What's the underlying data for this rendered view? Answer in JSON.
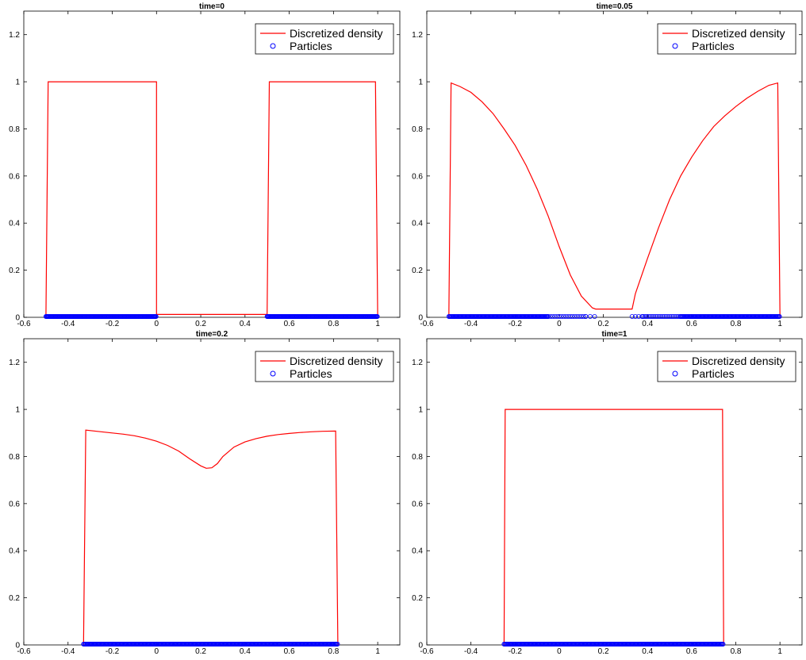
{
  "chart_data": [
    {
      "type": "line",
      "title": "time=0",
      "xlim": [
        -0.6,
        1.1
      ],
      "ylim": [
        0,
        1.3
      ],
      "xticks": [
        "-0.6",
        "-0.4",
        "-0.2",
        "0",
        "0.2",
        "0.4",
        "0.6",
        "0.8",
        "1"
      ],
      "xtick_values": [
        -0.6,
        -0.4,
        -0.2,
        0,
        0.2,
        0.4,
        0.6,
        0.8,
        1
      ],
      "yticks": [
        "0",
        "0.2",
        "0.4",
        "0.6",
        "0.8",
        "1",
        "1.2"
      ],
      "ytick_values": [
        0,
        0.2,
        0.4,
        0.6,
        0.8,
        1,
        1.2
      ],
      "legend": [
        "Discretized density",
        "Particles"
      ],
      "legend_position": "top-right",
      "series": [
        {
          "name": "Discretized density",
          "color": "#ff0000",
          "x": [
            -0.5,
            -0.49,
            0,
            0.0,
            0.5,
            0.51,
            0.99,
            1.0
          ],
          "y": [
            0,
            1,
            1,
            0.012,
            0.012,
            1,
            1,
            0
          ]
        },
        {
          "name": "Particles",
          "color": "#0000ff",
          "marker": "circle",
          "clusters": [
            {
              "from": -0.5,
              "to": 0.0,
              "gap": 0.003,
              "y": 0
            },
            {
              "from": 0.5,
              "to": 1.0,
              "gap": 0.003,
              "y": 0
            }
          ]
        }
      ]
    },
    {
      "type": "line",
      "title": "time=0.05",
      "xlim": [
        -0.6,
        1.1
      ],
      "ylim": [
        0,
        1.3
      ],
      "xticks": [
        "-0.6",
        "-0.4",
        "-0.2",
        "0",
        "0.2",
        "0.4",
        "0.6",
        "0.8",
        "1"
      ],
      "xtick_values": [
        -0.6,
        -0.4,
        -0.2,
        0,
        0.2,
        0.4,
        0.6,
        0.8,
        1
      ],
      "yticks": [
        "0",
        "0.2",
        "0.4",
        "0.6",
        "0.8",
        "1",
        "1.2"
      ],
      "ytick_values": [
        0,
        0.2,
        0.4,
        0.6,
        0.8,
        1,
        1.2
      ],
      "legend": [
        "Discretized density",
        "Particles"
      ],
      "legend_position": "top-right",
      "series": [
        {
          "name": "Discretized density",
          "color": "#ff0000",
          "x": [
            -0.5,
            -0.49,
            -0.45,
            -0.4,
            -0.35,
            -0.3,
            -0.25,
            -0.2,
            -0.15,
            -0.1,
            -0.05,
            0,
            0.05,
            0.1,
            0.15,
            0.165,
            0.33,
            0.345,
            0.4,
            0.45,
            0.5,
            0.55,
            0.6,
            0.65,
            0.7,
            0.75,
            0.8,
            0.85,
            0.9,
            0.95,
            0.99,
            1.0
          ],
          "y": [
            0,
            0.995,
            0.98,
            0.955,
            0.915,
            0.865,
            0.8,
            0.73,
            0.645,
            0.545,
            0.43,
            0.3,
            0.18,
            0.09,
            0.04,
            0.035,
            0.035,
            0.1,
            0.25,
            0.38,
            0.5,
            0.6,
            0.68,
            0.75,
            0.81,
            0.855,
            0.895,
            0.93,
            0.96,
            0.985,
            0.995,
            0
          ]
        },
        {
          "name": "Particles",
          "color": "#0000ff",
          "marker": "circle",
          "clusters": [
            {
              "from": -0.5,
              "to": -0.05,
              "gap": 0.004,
              "y": 0
            },
            {
              "from": -0.05,
              "to": 0.12,
              "gap": 0.01,
              "y": 0
            },
            {
              "from": 0.12,
              "to": 0.17,
              "gap": 0.02,
              "y": 0
            },
            {
              "from": 0.33,
              "to": 0.38,
              "gap": 0.015,
              "y": 0
            },
            {
              "from": 0.38,
              "to": 0.55,
              "gap": 0.008,
              "y": 0
            },
            {
              "from": 0.55,
              "to": 1.0,
              "gap": 0.004,
              "y": 0
            }
          ]
        }
      ]
    },
    {
      "type": "line",
      "title": "time=0.2",
      "xlim": [
        -0.6,
        1.1
      ],
      "ylim": [
        0,
        1.3
      ],
      "xticks": [
        "-0.6",
        "-0.4",
        "-0.2",
        "0",
        "0.2",
        "0.4",
        "0.6",
        "0.8",
        "1"
      ],
      "xtick_values": [
        -0.6,
        -0.4,
        -0.2,
        0,
        0.2,
        0.4,
        0.6,
        0.8,
        1
      ],
      "yticks": [
        "0",
        "0.2",
        "0.4",
        "0.6",
        "0.8",
        "1",
        "1.2"
      ],
      "ytick_values": [
        0,
        0.2,
        0.4,
        0.6,
        0.8,
        1,
        1.2
      ],
      "legend": [
        "Discretized density",
        "Particles"
      ],
      "legend_position": "top-right",
      "series": [
        {
          "name": "Discretized density",
          "color": "#ff0000",
          "x": [
            -0.33,
            -0.32,
            -0.25,
            -0.2,
            -0.15,
            -0.1,
            -0.05,
            0,
            0.05,
            0.1,
            0.15,
            0.2,
            0.225,
            0.25,
            0.275,
            0.3,
            0.35,
            0.4,
            0.45,
            0.5,
            0.55,
            0.6,
            0.65,
            0.7,
            0.75,
            0.81,
            0.82
          ],
          "y": [
            0,
            0.912,
            0.905,
            0.9,
            0.895,
            0.888,
            0.878,
            0.865,
            0.847,
            0.823,
            0.79,
            0.76,
            0.75,
            0.752,
            0.77,
            0.8,
            0.84,
            0.862,
            0.876,
            0.886,
            0.893,
            0.898,
            0.902,
            0.905,
            0.907,
            0.908,
            0
          ]
        },
        {
          "name": "Particles",
          "color": "#0000ff",
          "marker": "circle",
          "clusters": [
            {
              "from": -0.33,
              "to": 0.82,
              "gap": 0.004,
              "y": 0
            }
          ]
        }
      ]
    },
    {
      "type": "line",
      "title": "time=1",
      "xlim": [
        -0.6,
        1.1
      ],
      "ylim": [
        0,
        1.3
      ],
      "xticks": [
        "-0.6",
        "-0.4",
        "-0.2",
        "0",
        "0.2",
        "0.4",
        "0.6",
        "0.8",
        "1"
      ],
      "xtick_values": [
        -0.6,
        -0.4,
        -0.2,
        0,
        0.2,
        0.4,
        0.6,
        0.8,
        1
      ],
      "yticks": [
        "0",
        "0.2",
        "0.4",
        "0.6",
        "0.8",
        "1",
        "1.2"
      ],
      "ytick_values": [
        0,
        0.2,
        0.4,
        0.6,
        0.8,
        1,
        1.2
      ],
      "legend": [
        "Discretized density",
        "Particles"
      ],
      "legend_position": "top-right",
      "series": [
        {
          "name": "Discretized density",
          "color": "#ff0000",
          "x": [
            -0.25,
            -0.245,
            0.74,
            0.745
          ],
          "y": [
            0,
            1,
            1,
            0
          ]
        },
        {
          "name": "Particles",
          "color": "#0000ff",
          "marker": "circle",
          "clusters": [
            {
              "from": -0.25,
              "to": 0.745,
              "gap": 0.004,
              "y": 0
            }
          ]
        }
      ]
    }
  ]
}
